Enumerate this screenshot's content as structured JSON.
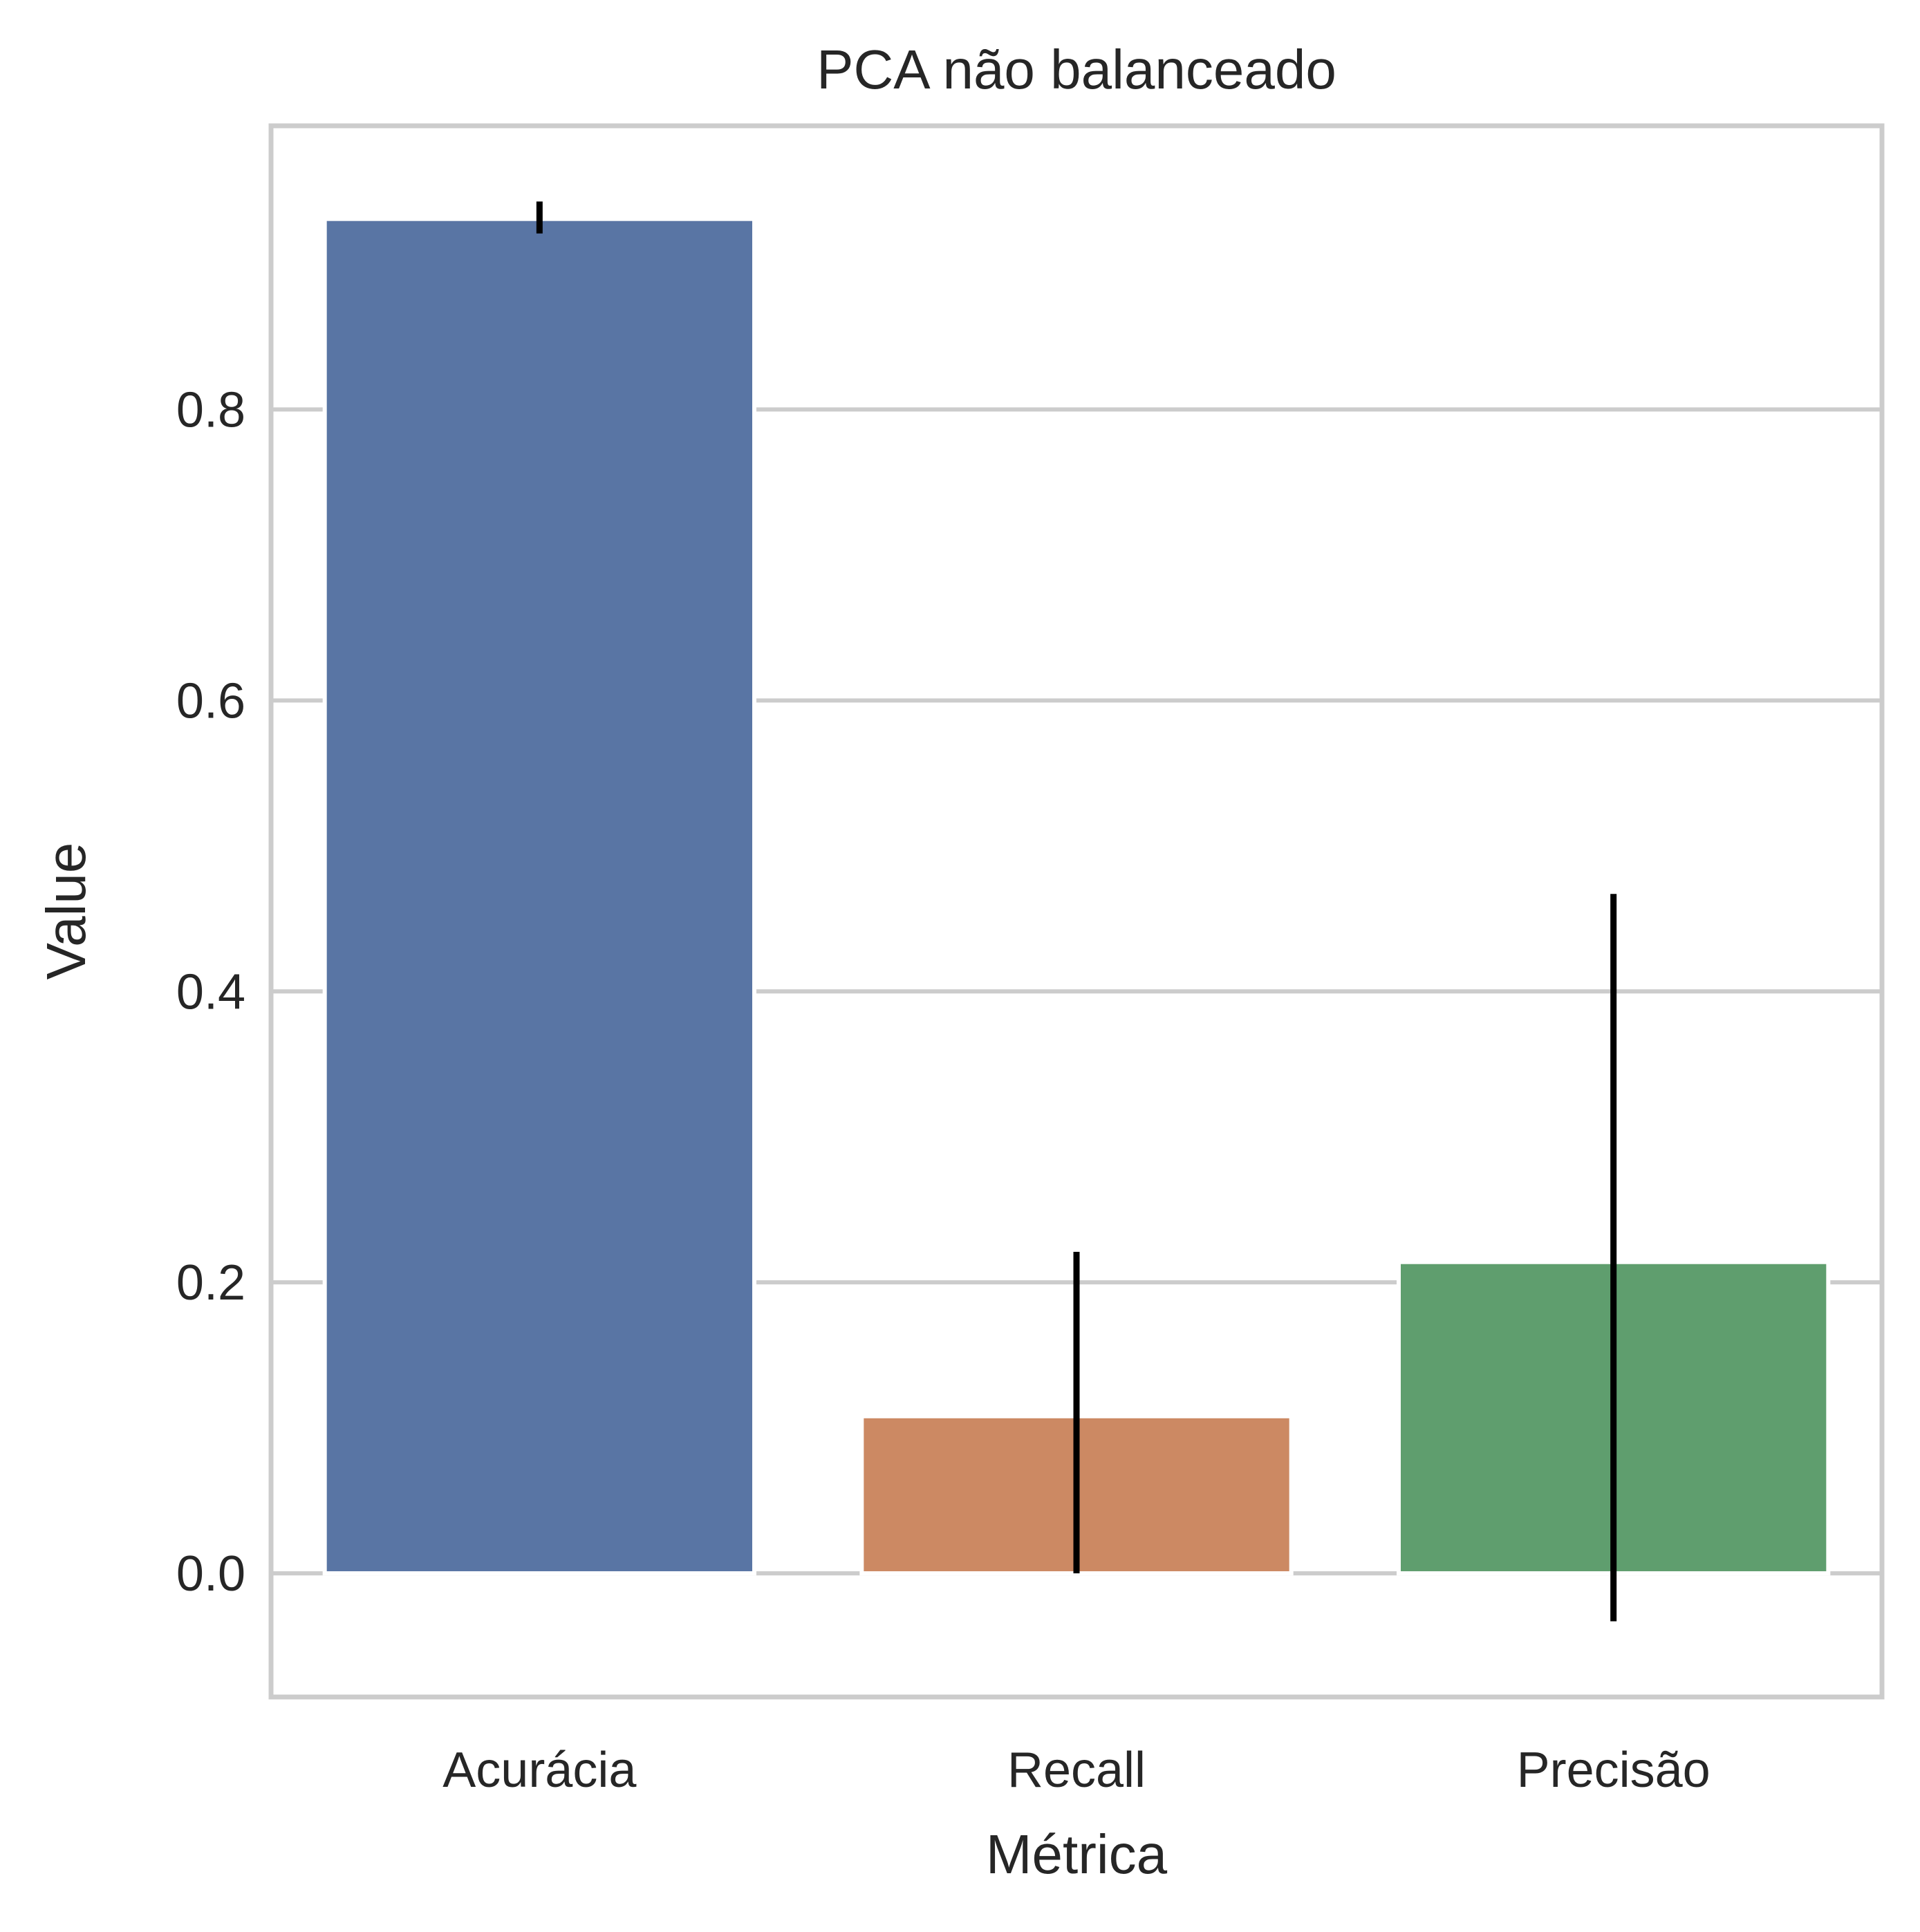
{
  "chart_data": {
    "type": "bar",
    "title": "PCA não balanceado",
    "xlabel": "Métrica",
    "ylabel": "Value",
    "categories": [
      "Acurácia",
      "Recall",
      "Precisão"
    ],
    "values": [
      0.931,
      0.108,
      0.214
    ],
    "error_low": [
      0.921,
      0.0,
      -0.033
    ],
    "error_high": [
      0.943,
      0.221,
      0.467
    ],
    "colors": [
      "#5975a4",
      "#cc8963",
      "#5f9e6e"
    ],
    "ylim": [
      -0.085,
      0.995
    ],
    "yticks": [
      0.0,
      0.2,
      0.4,
      0.6,
      0.8
    ],
    "ytick_labels": [
      "0.0",
      "0.2",
      "0.4",
      "0.6",
      "0.8"
    ],
    "grid": true,
    "errorbar_color": "#000000"
  }
}
